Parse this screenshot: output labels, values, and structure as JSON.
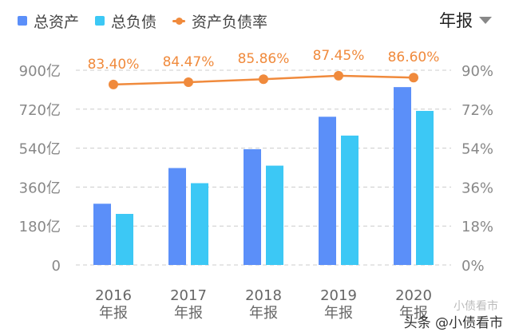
{
  "legend": {
    "total_assets": "总资产",
    "total_liabilities": "总负债",
    "debt_ratio": "资产负债率"
  },
  "period_selector": "年报",
  "watermark": "头条 @小债看市",
  "watermark_ghost": "小债看市",
  "colors": {
    "assets": "#5B8FF9",
    "liabilities": "#3CC8F5",
    "ratio": "#F08A3C",
    "axis_text": "#888888",
    "grid": "#CCCCCC"
  },
  "chart_data": {
    "type": "bar",
    "categories": [
      "2016",
      "2017",
      "2018",
      "2019",
      "2020"
    ],
    "category_sublabel": "年报",
    "series": [
      {
        "name": "总资产",
        "type": "bar",
        "axis": "left",
        "values": [
          283,
          448,
          535,
          685,
          822
        ]
      },
      {
        "name": "总负债",
        "type": "bar",
        "axis": "left",
        "values": [
          236,
          378,
          459,
          598,
          712
        ]
      },
      {
        "name": "资产负债率",
        "type": "line",
        "axis": "right",
        "values": [
          83.4,
          84.47,
          85.86,
          87.45,
          86.6
        ],
        "labels": [
          "83.40%",
          "84.47%",
          "85.86%",
          "87.45%",
          "86.60%"
        ]
      }
    ],
    "y_left": {
      "ticks": [
        "0",
        "180亿",
        "360亿",
        "540亿",
        "720亿",
        "900亿"
      ],
      "ylim": [
        0,
        900
      ]
    },
    "y_right": {
      "ticks": [
        "0%",
        "18%",
        "36%",
        "54%",
        "72%",
        "90%"
      ],
      "ylim": [
        0,
        90
      ]
    },
    "grid": true,
    "legend_position": "top-left"
  }
}
